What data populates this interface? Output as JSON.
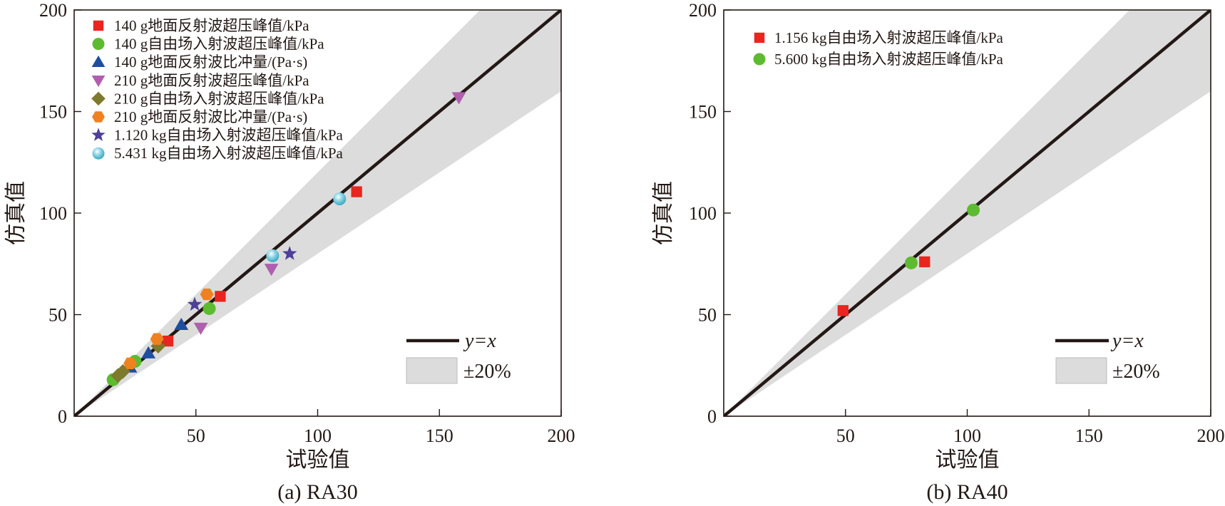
{
  "chart_data": [
    {
      "type": "scatter",
      "panel": "(a) RA30",
      "caption": "(a) RA30",
      "xlabel": "试验值",
      "ylabel": "仿真值",
      "xlim": [
        0,
        200
      ],
      "ylim": [
        0,
        200
      ],
      "xticks": [
        50,
        100,
        150,
        200
      ],
      "yticks": [
        0,
        50,
        100,
        150,
        200
      ],
      "reference_line_label": "y=x",
      "band_label": "±20%",
      "band_fraction": 0.2,
      "legend_position": "top-left",
      "series": [
        {
          "name": "140 g地面反射波超压峰值/kPa",
          "marker": "square",
          "color": "#e8251f",
          "points": [
            [
              116,
              110.5
            ],
            [
              60,
              59
            ],
            [
              38.5,
              37
            ]
          ]
        },
        {
          "name": "140 g自由场入射波超压峰值/kPa",
          "marker": "circle",
          "color": "#5dbb2f",
          "points": [
            [
              55.5,
              53
            ],
            [
              25,
              27
            ],
            [
              16,
              18
            ]
          ]
        },
        {
          "name": "140 g地面反射波比冲量/(Pa·s)",
          "marker": "triangle-up",
          "color": "#1f4e9f",
          "points": [
            [
              44,
              45
            ],
            [
              30.5,
              31
            ],
            [
              23,
              24
            ]
          ]
        },
        {
          "name": "210 g地面反射波超压峰值/kPa",
          "marker": "triangle-down",
          "color": "#b05fae",
          "points": [
            [
              158,
              157
            ],
            [
              81,
              72.5
            ],
            [
              52,
              43.5
            ]
          ]
        },
        {
          "name": "210 g自由场入射波超压峰值/kPa",
          "marker": "diamond",
          "color": "#7d7a2c",
          "points": [
            [
              34.5,
              34.5
            ],
            [
              20,
              22
            ],
            [
              18,
              20
            ]
          ]
        },
        {
          "name": "210 g地面反射波比冲量/(Pa·s)",
          "marker": "hexagon",
          "color": "#f08120",
          "points": [
            [
              54.5,
              60
            ],
            [
              34,
              38
            ],
            [
              23,
              26
            ]
          ]
        },
        {
          "name": "1.120 kg自由场入射波超压峰值/kPa",
          "marker": "star",
          "color": "#4e3f98",
          "points": [
            [
              88.5,
              80
            ],
            [
              49.5,
              55
            ]
          ]
        },
        {
          "name": "5.431 kg自由场入射波超压峰值/kPa",
          "marker": "sphere",
          "color": "#62c8dd",
          "points": [
            [
              109,
              107
            ],
            [
              81.5,
              79
            ]
          ]
        }
      ]
    },
    {
      "type": "scatter",
      "panel": "(b) RA40",
      "caption": "(b) RA40",
      "xlabel": "试验值",
      "ylabel": "仿真值",
      "xlim": [
        0,
        200
      ],
      "ylim": [
        0,
        200
      ],
      "xticks": [
        50,
        100,
        150,
        200
      ],
      "yticks": [
        0,
        50,
        100,
        150,
        200
      ],
      "reference_line_label": "y=x",
      "band_label": "±20%",
      "band_fraction": 0.2,
      "legend_position": "top-left",
      "series": [
        {
          "name": "1.156 kg自由场入射波超压峰值/kPa",
          "marker": "square",
          "color": "#e8251f",
          "points": [
            [
              49,
              52
            ],
            [
              82.5,
              76
            ]
          ]
        },
        {
          "name": "5.600 kg自由场入射波超压峰值/kPa",
          "marker": "circle",
          "color": "#5dbb2f",
          "points": [
            [
              77,
              75.5
            ],
            [
              102.5,
              101.5
            ]
          ]
        }
      ]
    }
  ]
}
